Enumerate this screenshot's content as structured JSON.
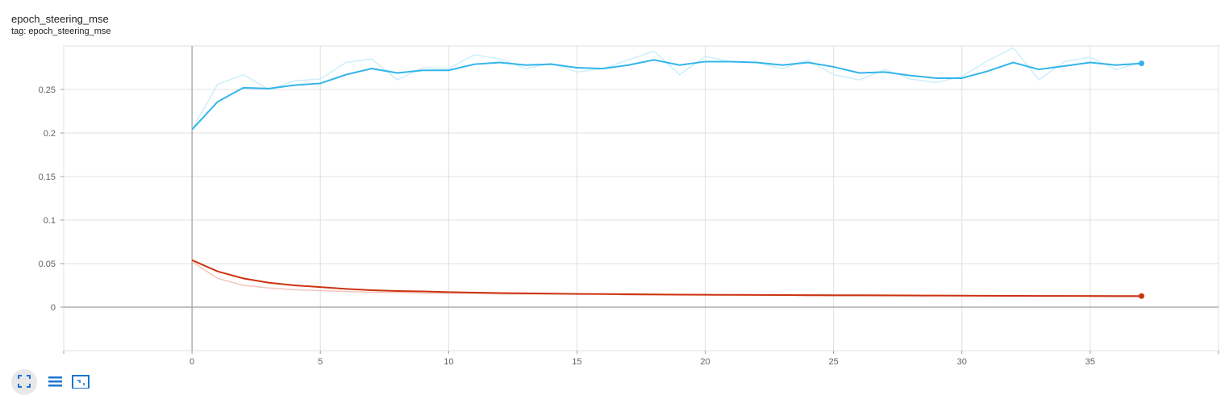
{
  "card": {
    "title": "epoch_steering_mse",
    "subtitle": "tag: epoch_steering_mse"
  },
  "toolbar": {
    "buttons": [
      "fullscreen-icon",
      "lines-icon",
      "fit-domain-icon"
    ]
  },
  "chart_data": {
    "type": "line",
    "title": "epoch_steering_mse",
    "xlabel": "",
    "ylabel": "",
    "xlim": [
      -5,
      40
    ],
    "ylim": [
      -0.05,
      0.3
    ],
    "xticks": [
      0,
      5,
      10,
      15,
      20,
      25,
      30,
      35
    ],
    "yticks": [
      0,
      0.05,
      0.1,
      0.15,
      0.2,
      0.25
    ],
    "ytick_labels": [
      "0",
      "0.05",
      "0.1",
      "0.15",
      "0.2",
      "0.25"
    ],
    "grid": true,
    "colors": {
      "blue": "#33b5ea",
      "blue_raw": "#cdeefb",
      "red": "#cc3311",
      "red_raw": "#f2c6bc"
    },
    "series": [
      {
        "color_key": "blue",
        "x": [
          0,
          1,
          2,
          3,
          4,
          5,
          6,
          7,
          8,
          9,
          10,
          11,
          12,
          13,
          14,
          15,
          16,
          17,
          18,
          19,
          20,
          21,
          22,
          23,
          24,
          25,
          26,
          27,
          28,
          29,
          30,
          31,
          32,
          33,
          34,
          35,
          36,
          37
        ],
        "raw": [
          0.204,
          0.256,
          0.267,
          0.25,
          0.26,
          0.262,
          0.281,
          0.285,
          0.261,
          0.275,
          0.274,
          0.29,
          0.285,
          0.274,
          0.28,
          0.27,
          0.274,
          0.284,
          0.294,
          0.267,
          0.288,
          0.282,
          0.281,
          0.274,
          0.284,
          0.267,
          0.261,
          0.273,
          0.262,
          0.258,
          0.265,
          0.283,
          0.298,
          0.261,
          0.282,
          0.287,
          0.273,
          0.281
        ],
        "smoothed": [
          0.204,
          0.236,
          0.252,
          0.251,
          0.255,
          0.257,
          0.267,
          0.274,
          0.269,
          0.272,
          0.272,
          0.279,
          0.281,
          0.278,
          0.279,
          0.275,
          0.274,
          0.278,
          0.284,
          0.278,
          0.282,
          0.282,
          0.281,
          0.278,
          0.281,
          0.276,
          0.269,
          0.27,
          0.266,
          0.263,
          0.263,
          0.271,
          0.281,
          0.273,
          0.277,
          0.281,
          0.278,
          0.28
        ]
      },
      {
        "color_key": "red",
        "x": [
          0,
          1,
          2,
          3,
          4,
          5,
          6,
          7,
          8,
          9,
          10,
          11,
          12,
          13,
          14,
          15,
          16,
          17,
          18,
          19,
          20,
          21,
          22,
          23,
          24,
          25,
          26,
          27,
          28,
          29,
          30,
          31,
          32,
          33,
          34,
          35,
          36,
          37
        ],
        "raw": [
          0.052,
          0.033,
          0.025,
          0.022,
          0.02,
          0.019,
          0.018,
          0.017,
          0.017,
          0.016,
          0.016,
          0.016,
          0.015,
          0.015,
          0.015,
          0.015,
          0.015,
          0.014,
          0.014,
          0.014,
          0.014,
          0.014,
          0.014,
          0.014,
          0.013,
          0.013,
          0.013,
          0.013,
          0.013,
          0.013,
          0.013,
          0.013,
          0.013,
          0.013,
          0.013,
          0.012,
          0.012,
          0.012
        ],
        "smoothed": [
          0.054,
          0.041,
          0.033,
          0.028,
          0.025,
          0.023,
          0.021,
          0.0195,
          0.0185,
          0.018,
          0.0172,
          0.0167,
          0.0162,
          0.0158,
          0.0155,
          0.0152,
          0.015,
          0.0148,
          0.0146,
          0.0144,
          0.0142,
          0.0141,
          0.014,
          0.0139,
          0.0138,
          0.0137,
          0.0136,
          0.0135,
          0.0134,
          0.0133,
          0.0132,
          0.0131,
          0.013,
          0.0129,
          0.0128,
          0.0128,
          0.0127,
          0.0127
        ]
      }
    ]
  }
}
